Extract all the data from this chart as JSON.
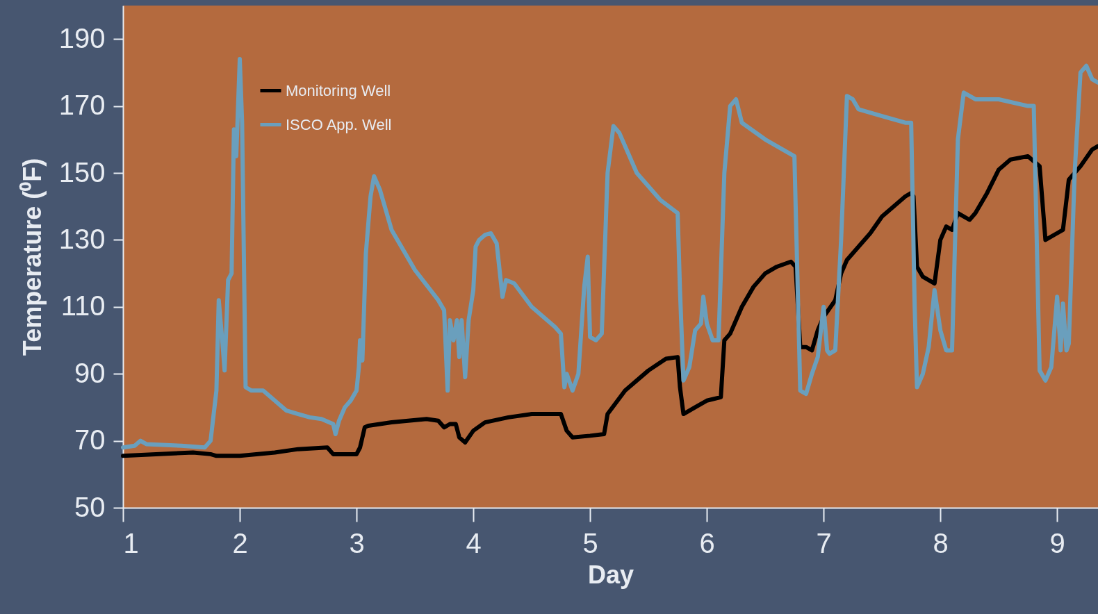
{
  "chart_data": {
    "type": "line",
    "xlabel": "Day",
    "ylabel": "Temperature (⁰F)",
    "xlim": [
      1,
      9.35
    ],
    "xticks": [
      1,
      2,
      3,
      4,
      5,
      6,
      7,
      8,
      9
    ],
    "ylim": [
      50,
      200
    ],
    "yticks": [
      50,
      70,
      90,
      110,
      130,
      150,
      170,
      190
    ],
    "grid": false,
    "legend": "top left",
    "marker": "none",
    "line_style": "solid",
    "series": [
      {
        "name": "Monitoring Well",
        "color": "#000000",
        "x": [
          1.0,
          1.6,
          1.75,
          1.8,
          2.0,
          2.3,
          2.5,
          2.75,
          2.8,
          3.0,
          3.03,
          3.07,
          3.1,
          3.3,
          3.6,
          3.7,
          3.75,
          3.8,
          3.85,
          3.88,
          3.93,
          4.0,
          4.1,
          4.3,
          4.5,
          4.75,
          4.8,
          4.85,
          5.0,
          5.12,
          5.15,
          5.3,
          5.5,
          5.65,
          5.75,
          5.77,
          5.8,
          5.9,
          6.0,
          6.12,
          6.15,
          6.2,
          6.3,
          6.4,
          6.5,
          6.6,
          6.72,
          6.76,
          6.8,
          6.85,
          6.9,
          6.95,
          7.0,
          7.1,
          7.15,
          7.2,
          7.3,
          7.4,
          7.5,
          7.6,
          7.7,
          7.75,
          7.77,
          7.8,
          7.85,
          7.95,
          8.0,
          8.05,
          8.1,
          8.15,
          8.25,
          8.3,
          8.4,
          8.5,
          8.6,
          8.75,
          8.85,
          8.9,
          9.0,
          9.05,
          9.1,
          9.2,
          9.3,
          9.35
        ],
        "values": [
          65.5,
          66.5,
          66,
          65.5,
          65.5,
          66.5,
          67.5,
          68,
          66,
          66,
          68,
          74,
          74.5,
          75.5,
          76.5,
          76,
          74,
          75,
          75,
          71,
          69.5,
          73,
          75.5,
          77,
          78,
          78,
          73,
          71,
          71.5,
          72,
          78,
          85,
          91,
          94.5,
          95,
          86,
          78,
          80,
          82,
          83,
          100,
          102,
          110,
          116,
          120,
          122,
          123.5,
          122,
          98,
          98,
          97,
          103,
          107,
          112,
          120,
          124,
          128,
          132,
          137,
          140,
          143,
          144,
          143,
          122,
          119,
          117,
          130,
          134,
          133,
          138,
          136,
          138,
          144,
          151,
          154,
          155,
          152,
          130,
          132,
          133,
          148,
          152,
          157,
          158
        ]
      },
      {
        "name": "ISCO App. Well",
        "color": "#6a9fbd",
        "x": [
          1.0,
          1.1,
          1.15,
          1.2,
          1.5,
          1.7,
          1.75,
          1.8,
          1.82,
          1.85,
          1.87,
          1.9,
          1.93,
          1.95,
          1.97,
          2.0,
          2.02,
          2.05,
          2.1,
          2.2,
          2.3,
          2.4,
          2.5,
          2.6,
          2.7,
          2.8,
          2.82,
          2.85,
          2.9,
          2.95,
          3.0,
          3.02,
          3.03,
          3.05,
          3.08,
          3.12,
          3.15,
          3.2,
          3.3,
          3.5,
          3.7,
          3.75,
          3.78,
          3.8,
          3.83,
          3.86,
          3.88,
          3.9,
          3.93,
          3.96,
          4.0,
          4.02,
          4.05,
          4.1,
          4.15,
          4.2,
          4.25,
          4.28,
          4.35,
          4.5,
          4.7,
          4.75,
          4.78,
          4.8,
          4.85,
          4.9,
          4.95,
          4.98,
          5.0,
          5.05,
          5.1,
          5.15,
          5.2,
          5.25,
          5.4,
          5.6,
          5.75,
          5.77,
          5.8,
          5.85,
          5.9,
          5.95,
          5.97,
          6.0,
          6.05,
          6.1,
          6.15,
          6.2,
          6.25,
          6.3,
          6.5,
          6.7,
          6.75,
          6.8,
          6.85,
          6.9,
          6.95,
          7.0,
          7.03,
          7.05,
          7.1,
          7.15,
          7.2,
          7.25,
          7.3,
          7.5,
          7.7,
          7.75,
          7.78,
          7.8,
          7.85,
          7.9,
          7.95,
          8.0,
          8.05,
          8.1,
          8.15,
          8.2,
          8.25,
          8.3,
          8.5,
          8.75,
          8.8,
          8.85,
          8.9,
          8.95,
          9.0,
          9.03,
          9.05,
          9.08,
          9.1,
          9.15,
          9.2,
          9.25,
          9.3,
          9.35
        ],
        "values": [
          68,
          68.5,
          70,
          69,
          68.5,
          68,
          70,
          85,
          112,
          100,
          91,
          118,
          120,
          163,
          155,
          184,
          165,
          86,
          85,
          85,
          82,
          79,
          78,
          77,
          76.5,
          75,
          72,
          76,
          80,
          82,
          85,
          92,
          100,
          94,
          126,
          143,
          149,
          145,
          133,
          121,
          112,
          109,
          85,
          106,
          100,
          106,
          95,
          106,
          89,
          106,
          115,
          128,
          130,
          131.5,
          132,
          129,
          113,
          118,
          117,
          110,
          104,
          102,
          86,
          90,
          85,
          90,
          116,
          125,
          101,
          100,
          102,
          150,
          164,
          162,
          150,
          142,
          138,
          115,
          88,
          92,
          103,
          105,
          113,
          105,
          100,
          100,
          150,
          170,
          172,
          165,
          160,
          156,
          155,
          85,
          84,
          90,
          95,
          110,
          97,
          96,
          97,
          130,
          173,
          172,
          169,
          167,
          165,
          165,
          110,
          86,
          90,
          98,
          115,
          103,
          97,
          97,
          160,
          174,
          173,
          172,
          172,
          170,
          170,
          91,
          88,
          92,
          113,
          97,
          111,
          97,
          99,
          150,
          180,
          182,
          178,
          177
        ]
      }
    ]
  }
}
